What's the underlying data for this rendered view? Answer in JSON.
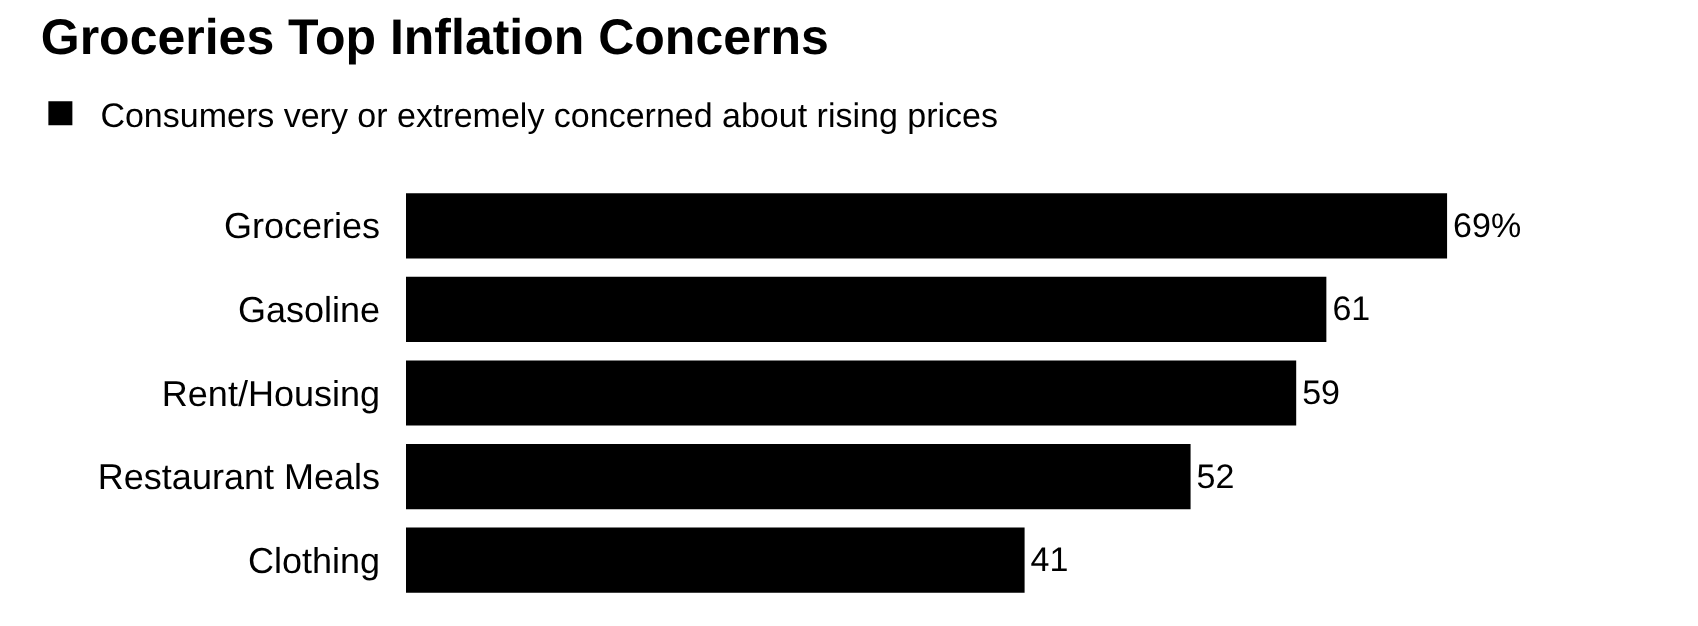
{
  "chart_data": {
    "type": "bar",
    "orientation": "horizontal",
    "title": "Groceries Top Inflation Concerns",
    "categories": [
      "Groceries",
      "Gasoline",
      "Rent/Housing",
      "Restaurant Meals",
      "Clothing"
    ],
    "series": [
      {
        "name": "Consumers very or extremely concerned about rising prices",
        "color": "#000000",
        "values": [
          69,
          61,
          59,
          52,
          41
        ],
        "value_labels": [
          "69%",
          "61",
          "59",
          "52",
          "41"
        ]
      }
    ],
    "legend": "top left"
  }
}
